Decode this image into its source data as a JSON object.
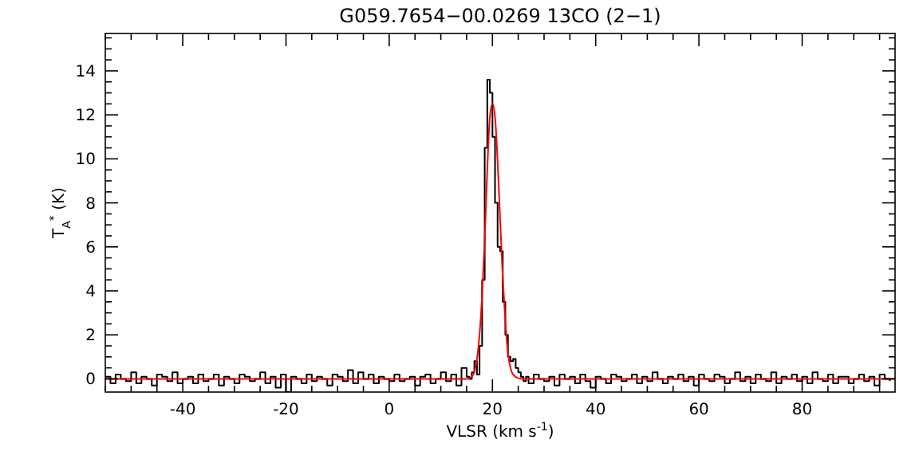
{
  "chart_data": {
    "type": "step",
    "title": "G059.7654−00.0269 13CO (2−1)",
    "xlabel": "VLSR (km s$^{-1}$)",
    "ylabel": "T$_{A}$$^{*}$ (K)",
    "xlim": [
      -55,
      98
    ],
    "ylim": [
      -0.6,
      15.7
    ],
    "xticks": [
      {
        "value": -55,
        "label": null
      },
      {
        "value": -50,
        "label": null
      },
      {
        "value": -45,
        "label": null
      },
      -40,
      {
        "value": -35,
        "label": null
      },
      {
        "value": -30,
        "label": null
      },
      {
        "value": -25,
        "label": null
      },
      -20,
      {
        "value": -15,
        "label": null
      },
      {
        "value": -10,
        "label": null
      },
      {
        "value": -5,
        "label": null
      },
      0,
      {
        "value": 5,
        "label": null
      },
      {
        "value": 10,
        "label": null
      },
      {
        "value": 15,
        "label": null
      },
      20,
      {
        "value": 25,
        "label": null
      },
      {
        "value": 30,
        "label": null
      },
      {
        "value": 35,
        "label": null
      },
      40,
      {
        "value": 45,
        "label": null
      },
      {
        "value": 50,
        "label": null
      },
      {
        "value": 55,
        "label": null
      },
      60,
      {
        "value": 65,
        "label": null
      },
      {
        "value": 70,
        "label": null
      },
      {
        "value": 75,
        "label": null
      },
      80,
      {
        "value": 85,
        "label": null
      },
      {
        "value": 90,
        "label": null
      },
      {
        "value": 95,
        "label": null
      }
    ],
    "yticks": [
      0,
      {
        "value": 0.5,
        "label": null
      },
      {
        "value": 1,
        "label": null
      },
      {
        "value": 1.5,
        "label": null
      },
      2,
      {
        "value": 2.5,
        "label": null
      },
      {
        "value": 3,
        "label": null
      },
      {
        "value": 3.5,
        "label": null
      },
      4,
      {
        "value": 4.5,
        "label": null
      },
      {
        "value": 5,
        "label": null
      },
      {
        "value": 5.5,
        "label": null
      },
      6,
      {
        "value": 6.5,
        "label": null
      },
      {
        "value": 7,
        "label": null
      },
      {
        "value": 7.5,
        "label": null
      },
      8,
      {
        "value": 8.5,
        "label": null
      },
      {
        "value": 9,
        "label": null
      },
      {
        "value": 9.5,
        "label": null
      },
      10,
      {
        "value": 10.5,
        "label": null
      },
      {
        "value": 11,
        "label": null
      },
      {
        "value": 11.5,
        "label": null
      },
      12,
      {
        "value": 12.5,
        "label": null
      },
      {
        "value": 13,
        "label": null
      },
      {
        "value": 13.5,
        "label": null
      },
      14,
      {
        "value": 14.5,
        "label": null
      },
      {
        "value": 15,
        "label": null
      },
      {
        "value": 15.5,
        "label": null
      }
    ],
    "grid": false,
    "series": [
      {
        "color": "#000000",
        "x": [
          -55,
          -54,
          -53,
          -52,
          -51,
          -50,
          -49,
          -48,
          -47,
          -46,
          -45,
          -44,
          -43,
          -42,
          -41,
          -40,
          -39,
          -38,
          -37,
          -36,
          -35,
          -34,
          -33,
          -32,
          -31,
          -30,
          -29,
          -28,
          -27,
          -26,
          -25,
          -24,
          -23,
          -22,
          -21,
          -20,
          -19,
          -18,
          -17,
          -16,
          -15,
          -14,
          -13,
          -12,
          -11,
          -10,
          -9,
          -8,
          -7,
          -6,
          -5,
          -4,
          -3,
          -2,
          -1,
          0,
          1,
          2,
          3,
          4,
          5,
          6,
          7,
          8,
          9,
          10,
          11,
          12,
          13,
          14,
          15,
          15.5,
          16,
          16.5,
          17,
          17.5,
          18,
          18.5,
          19,
          19.5,
          20,
          20.5,
          21,
          21.5,
          22,
          22.5,
          23,
          23.5,
          24,
          24.5,
          25,
          25.5,
          26,
          26.5,
          27,
          28,
          29,
          30,
          31,
          32,
          33,
          34,
          35,
          36,
          37,
          38,
          39,
          40,
          41,
          42,
          43,
          44,
          45,
          46,
          47,
          48,
          49,
          50,
          51,
          52,
          53,
          54,
          55,
          56,
          57,
          58,
          59,
          60,
          61,
          62,
          63,
          64,
          65,
          66,
          67,
          68,
          69,
          70,
          71,
          72,
          73,
          74,
          75,
          76,
          77,
          78,
          79,
          80,
          81,
          82,
          83,
          84,
          85,
          86,
          87,
          88,
          89,
          90,
          91,
          92,
          93,
          94,
          95,
          96,
          97
        ],
        "values": [
          0.1,
          -0.2,
          0.2,
          0.0,
          -0.1,
          0.3,
          -0.2,
          0.1,
          0.0,
          -0.3,
          0.2,
          0.1,
          -0.1,
          0.3,
          -0.2,
          0.0,
          0.1,
          -0.2,
          0.2,
          -0.1,
          0.0,
          0.2,
          -0.3,
          0.1,
          0.0,
          -0.2,
          0.2,
          0.1,
          -0.1,
          0.0,
          0.3,
          -0.2,
          0.1,
          -0.4,
          0.2,
          -0.6,
          0.1,
          0.0,
          -0.2,
          0.2,
          -0.1,
          0.1,
          0.0,
          -0.3,
          0.2,
          0.1,
          -0.1,
          0.4,
          -0.2,
          0.3,
          0.0,
          0.2,
          -0.2,
          0.1,
          0.0,
          -0.1,
          0.2,
          -0.1,
          0.0,
          0.1,
          -0.3,
          0.1,
          0.2,
          -0.2,
          0.0,
          0.3,
          -0.1,
          0.2,
          -0.3,
          0.5,
          0.1,
          0.0,
          0.3,
          0.8,
          0.2,
          1.5,
          4.5,
          10.5,
          13.6,
          13.0,
          11.0,
          8.0,
          6.0,
          5.8,
          3.5,
          2.0,
          1.0,
          0.8,
          0.9,
          0.5,
          0.3,
          0.1,
          -0.1,
          0.1,
          -0.2,
          0.2,
          0.0,
          -0.1,
          0.1,
          -0.3,
          0.2,
          0.0,
          0.1,
          -0.2,
          0.2,
          -0.1,
          -0.4,
          0.1,
          0.0,
          -0.2,
          0.2,
          0.1,
          -0.1,
          0.0,
          0.2,
          -0.2,
          0.1,
          -0.1,
          0.3,
          0.0,
          -0.2,
          0.1,
          0.0,
          0.2,
          -0.1,
          0.1,
          -0.3,
          0.2,
          0.0,
          -0.1,
          0.2,
          0.1,
          -0.2,
          0.0,
          0.3,
          -0.1,
          0.1,
          -0.2,
          0.2,
          0.0,
          -0.1,
          0.3,
          -0.2,
          0.1,
          0.0,
          0.2,
          -0.1,
          0.1,
          -0.2,
          0.3,
          0.0,
          -0.1,
          0.2,
          -0.2,
          0.1,
          0.1,
          -0.2,
          0.0,
          0.2,
          -0.1,
          0.1,
          -0.3,
          0.2,
          0.0,
          -0.1
        ]
      },
      {
        "type": "line",
        "color": "#ff0000",
        "x": [
          -55,
          15,
          16,
          17,
          18,
          18.5,
          19,
          19.5,
          20,
          20.5,
          21,
          21.5,
          22,
          22.5,
          23,
          24,
          25,
          26,
          98
        ],
        "values": [
          0,
          0,
          0.1,
          0.9,
          3.8,
          6.3,
          9.5,
          11.9,
          12.5,
          11.9,
          9.9,
          7.2,
          4.6,
          2.6,
          1.2,
          0.2,
          0.03,
          0,
          0
        ]
      }
    ]
  }
}
